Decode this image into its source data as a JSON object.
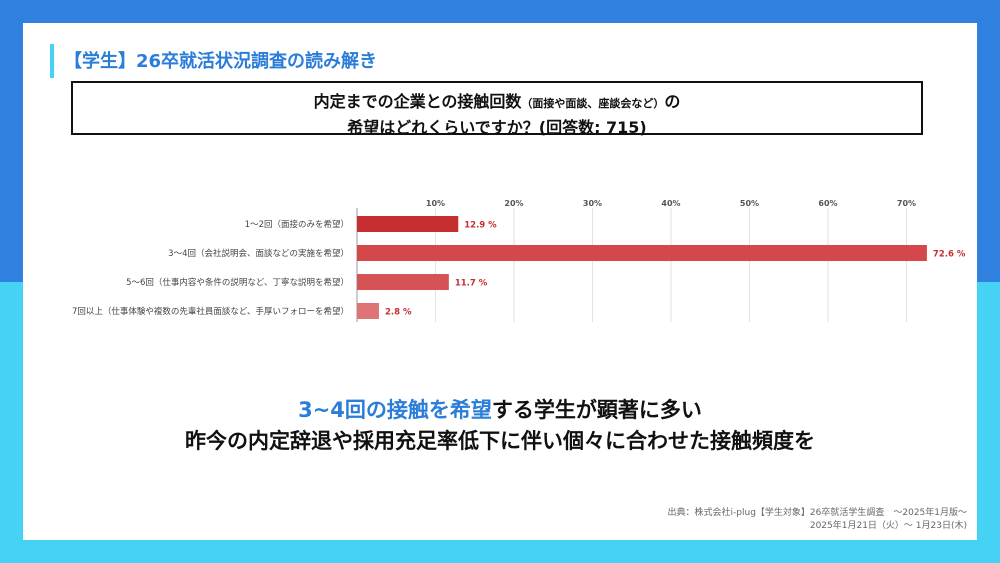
{
  "slide": {
    "title": "【学生】26卒就活状況調査の読み解き"
  },
  "question": {
    "line1_main": "内定までの企業との接触回数",
    "line1_small": "（面接や面談、座談会など）",
    "line1_tail": "の",
    "line2": "希望はどれくらいですか？(回答数: 715)"
  },
  "chart_data": {
    "type": "bar",
    "orientation": "horizontal",
    "categories": [
      "1〜2回（面接のみを希望）",
      "3〜4回（会社説明会、面談などの実施を希望）",
      "5〜6回（仕事内容や条件の説明など、丁寧な説明を希望）",
      "7回以上（仕事体験や複数の先輩社員面談など、手厚いフォローを希望）"
    ],
    "values": [
      12.9,
      72.6,
      11.7,
      2.8
    ],
    "value_labels": [
      "12.9 %",
      "72.6 %",
      "11.7 %",
      "2.8 %"
    ],
    "x_ticks": [
      "10%",
      "20%",
      "30%",
      "40%",
      "50%",
      "60%",
      "70%"
    ],
    "xlim": [
      0,
      73
    ],
    "bar_colors": [
      "#c62f32",
      "#d4474a",
      "#d65355",
      "#e07377"
    ],
    "label_color": "#c62f32",
    "grid": true,
    "title": "",
    "xlabel": "",
    "ylabel": ""
  },
  "conclusion": {
    "line1_highlight": "3~4回の接触を希望",
    "line1_rest": "する学生が顕著に多い",
    "line2": "昨今の内定辞退や採用充足率低下に伴い個々に合わせた接触頻度を"
  },
  "source": {
    "line1": "出典：株式会社i-plug【学生対象】26卒就活学生調査　〜2025年1月版〜",
    "line2": "2025年1月21日（火）〜 1月23日(木)"
  },
  "colors": {
    "background_top": "#2f80df",
    "background_bottom": "#45d2f4",
    "accent": "#2a7dd8"
  }
}
